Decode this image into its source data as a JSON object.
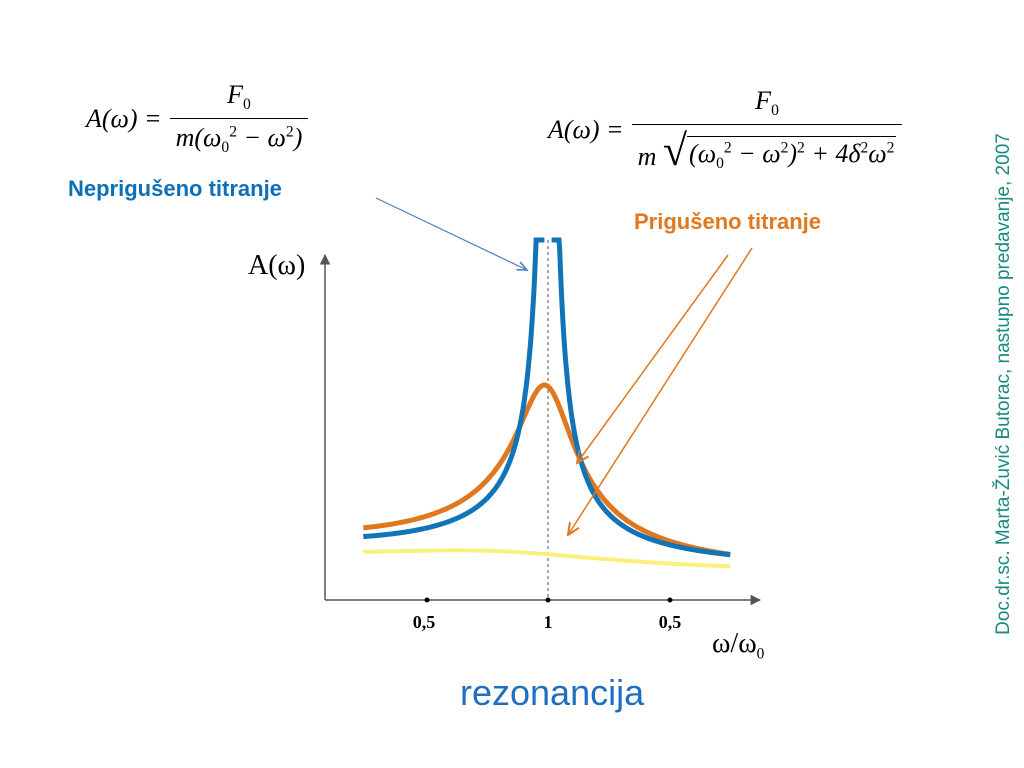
{
  "equations": {
    "undamped": {
      "lhs": "A(ω) =",
      "numerator": "F",
      "numerator_sub": "0",
      "denominator_pre": "m(ω",
      "denominator_sub": "0",
      "denominator_sup": "2",
      "denominator_mid": " − ω",
      "denominator_sup2": "2",
      "denominator_post": ")"
    },
    "damped": {
      "lhs": "A(ω) =",
      "numerator": "F",
      "numerator_sub": "0",
      "denominator_pre": "m",
      "radicand_open": "(ω",
      "radicand_sub": "0",
      "radicand_sup": "2",
      "radicand_mid": " − ω",
      "radicand_sup2": "2",
      "radicand_close": ")",
      "radicand_sup3": "2",
      "radicand_tail": " + 4δ",
      "radicand_sup4": "2",
      "radicand_end": "ω",
      "radicand_sup5": "2"
    }
  },
  "labels": {
    "undamped": "Nepriguš​eno titranje",
    "damped": "Prigušeno titranje",
    "caption": "rezonancija",
    "credit": "Doc.dr.sc. Marta-Žuvić Butorac, nastupno predavanje, 2007"
  },
  "axes": {
    "ylabel": "A(ω)",
    "xlabel_main": "ω/ω",
    "xlabel_sub": "0",
    "ticks": [
      "0,5",
      "1",
      "0,5"
    ]
  },
  "colors": {
    "undamped": "#1173b8",
    "damped_strong": "#e07820",
    "damped_weak": "#fbf07a",
    "axis": "#555555",
    "arrow_blue": "#4f7fc0",
    "arrow_orange": "#e07820"
  },
  "chart_data": {
    "type": "line",
    "x_range": [
      0.1,
      2.0
    ],
    "resonance_x": 1,
    "series": [
      {
        "curve": "undamped",
        "damping": 0.0
      },
      {
        "curve": "damped_strong",
        "damping": 0.12
      },
      {
        "curve": "damped_weak",
        "damping": 0.55
      }
    ]
  }
}
